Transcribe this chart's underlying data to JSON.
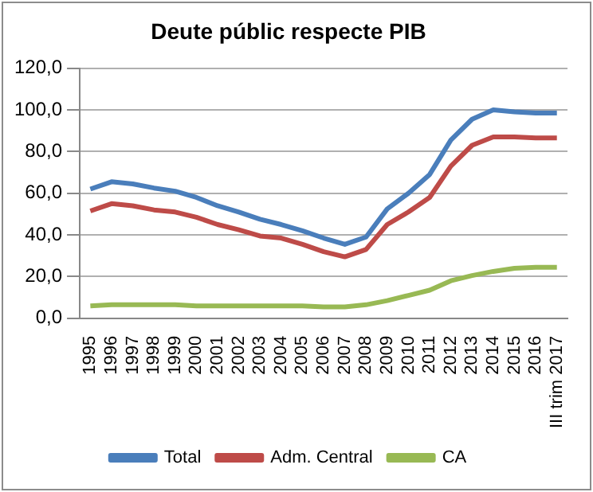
{
  "chart_data": {
    "type": "line",
    "title": "Deute públic respecte PIB",
    "categories": [
      "1995",
      "1996",
      "1997",
      "1998",
      "1999",
      "2000",
      "2001",
      "2002",
      "2003",
      "2004",
      "2005",
      "2006",
      "2007",
      "2008",
      "2009",
      "2010",
      "2011",
      "2012",
      "2013",
      "2014",
      "2015",
      "2016",
      "III trim 2017"
    ],
    "series": [
      {
        "name": "Total",
        "color": "#4a7ebb",
        "values": [
          62,
          65.5,
          64.5,
          62.5,
          61,
          58,
          54,
          51,
          47.5,
          45,
          42,
          38.5,
          35.5,
          39,
          52.5,
          60,
          69,
          85.5,
          95.5,
          100,
          99,
          98.5,
          98.5
        ]
      },
      {
        "name": "Adm. Central",
        "color": "#be4b48",
        "values": [
          51.5,
          55,
          54,
          52,
          51,
          48.5,
          45,
          42.5,
          39.5,
          38.5,
          35.5,
          32,
          29.5,
          33,
          45,
          51,
          58,
          73,
          83,
          87,
          87,
          86.5,
          86.5
        ]
      },
      {
        "name": "CA",
        "color": "#98b954",
        "values": [
          6,
          6.5,
          6.5,
          6.5,
          6.5,
          6,
          6,
          6,
          6,
          6,
          6,
          5.5,
          5.5,
          6.5,
          8.5,
          11,
          13.5,
          18,
          20.5,
          22.5,
          24,
          24.5,
          24.5
        ]
      }
    ],
    "ylim": [
      0,
      120
    ],
    "yticks": [
      {
        "value": 0,
        "label": "0,0"
      },
      {
        "value": 20,
        "label": "20,0"
      },
      {
        "value": 40,
        "label": "40,0"
      },
      {
        "value": 60,
        "label": "60,0"
      },
      {
        "value": 80,
        "label": "80,0"
      },
      {
        "value": 100,
        "label": "100,0"
      },
      {
        "value": 120,
        "label": "120,0"
      }
    ],
    "grid": "y",
    "legend": "bottom",
    "marker": "none",
    "line_style": "solid"
  }
}
